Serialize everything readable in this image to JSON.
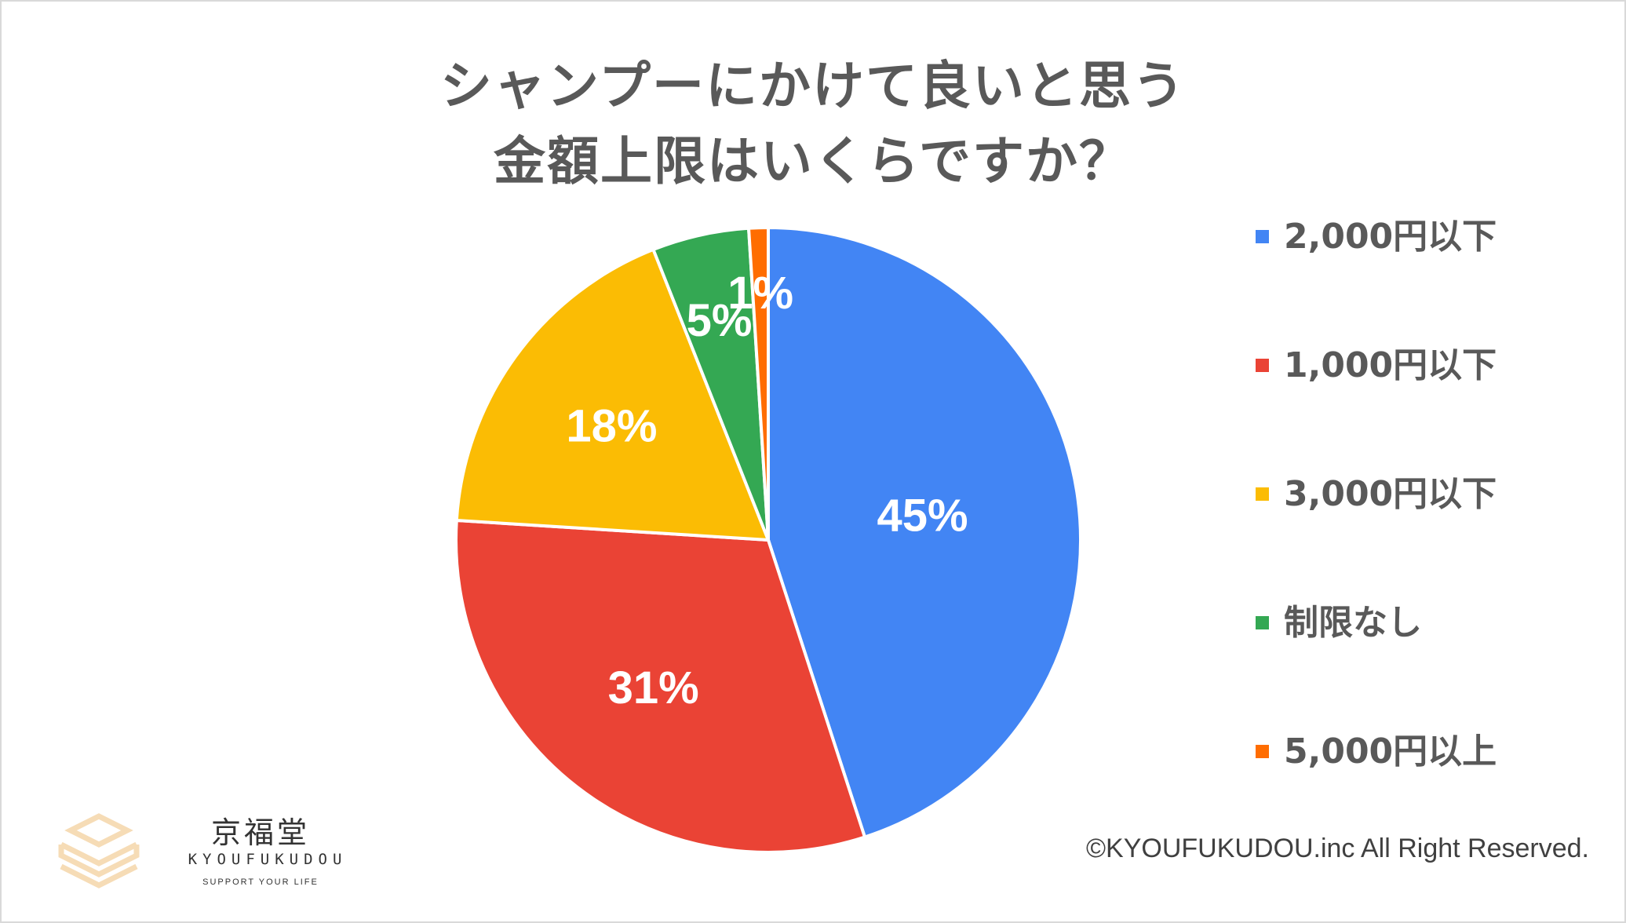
{
  "chart_data": {
    "type": "pie",
    "title_lines": [
      "シャンプーにかけて良いと思う",
      "金額上限はいくらですか？"
    ],
    "categories": [
      "2,000円以下",
      "1,000円以下",
      "3,000円以下",
      "制限なし",
      "5,000円以上"
    ],
    "values": [
      45,
      31,
      18,
      5,
      1
    ],
    "labels": [
      "45%",
      "31%",
      "18%",
      "5%",
      "1%"
    ],
    "colors": [
      "#4285f4",
      "#ea4335",
      "#fbbc04",
      "#34a853",
      "#ff6d01"
    ],
    "legend_position": "right",
    "start": "12 o'clock",
    "direction": "clockwise"
  },
  "copyright": "©KYOUFUKUDOU.inc All Right Reserved.",
  "logo": {
    "name": "京福堂",
    "romaji": "KYOUFUKUDOU",
    "tagline": "SUPPORT YOUR LIFE",
    "icon": "stacked-boxes-logo-icon"
  }
}
